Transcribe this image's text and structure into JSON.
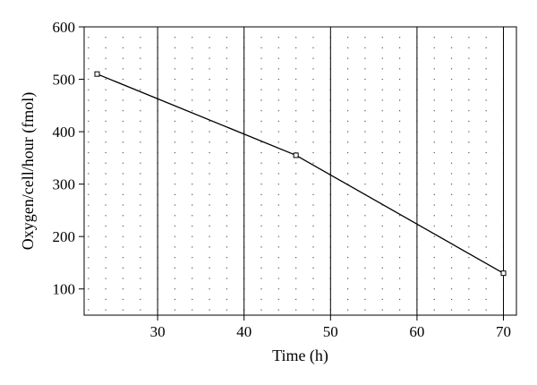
{
  "chart_data": {
    "type": "line",
    "xlabel": "Time (h)",
    "ylabel": "Oxygen/cell/hour (fmol)",
    "xlim": [
      21.5,
      71.5
    ],
    "ylim": [
      50,
      600
    ],
    "xticks": [
      30,
      40,
      50,
      60,
      70
    ],
    "yticks": [
      100,
      200,
      300,
      400,
      500,
      600
    ],
    "grid": {
      "major_x_lines": "solid",
      "minor": "dotted"
    },
    "series": [
      {
        "x": [
          23,
          46,
          70
        ],
        "y": [
          510,
          355,
          130
        ],
        "marker": "square",
        "color": "#000000"
      }
    ]
  }
}
